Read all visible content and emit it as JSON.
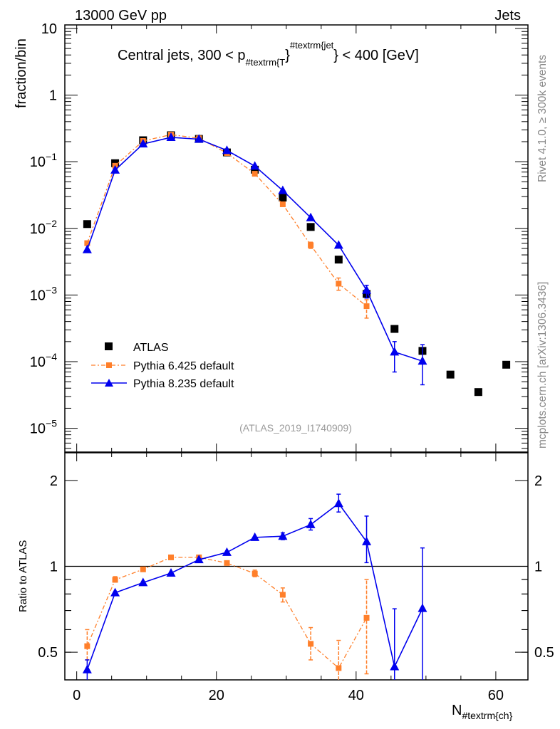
{
  "header": {
    "left": "13000 GeV pp",
    "right": "Jets"
  },
  "side": {
    "rivet": "Rivet 4.1.0, ≥ 300k events",
    "mcplots": "mcplots.cern.ch [arXiv:1306.3436]"
  },
  "chart_data": [
    {
      "type": "scatter",
      "title_parts": {
        "main": "Central jets, 300 < p",
        "sub": "#textrm{T",
        "mid": "}",
        "sup": "#textrm{jet",
        "tail": "} < 400 [GeV]"
      },
      "ylabel": "fraction/bin",
      "yscale": "log",
      "ylim": [
        4.4e-06,
        11.3
      ],
      "xlim": [
        -1.7,
        64.6
      ],
      "yticks": [
        {
          "v": 10,
          "base": "10",
          "exp": ""
        },
        {
          "v": 1,
          "base": "1",
          "exp": ""
        },
        {
          "v": 0.1,
          "base": "10",
          "exp": "−1"
        },
        {
          "v": 0.01,
          "base": "10",
          "exp": "−2"
        },
        {
          "v": 0.001,
          "base": "10",
          "exp": "−3"
        },
        {
          "v": 0.0001,
          "base": "10",
          "exp": "−4"
        },
        {
          "v": 1e-05,
          "base": "10",
          "exp": "−5"
        }
      ],
      "annotation": "(ATLAS_2019_I1740909)",
      "legend_position": "bottom-left",
      "series": [
        {
          "name": "ATLAS",
          "color": "#000000",
          "marker": "square",
          "x": [
            1.5,
            5.5,
            9.5,
            13.5,
            17.5,
            21.5,
            25.5,
            29.5,
            33.5,
            37.5,
            41.5,
            45.5,
            49.5,
            53.5,
            57.5,
            61.5
          ],
          "y": [
            0.0116,
            0.095,
            0.21,
            0.25,
            0.22,
            0.138,
            0.076,
            0.029,
            0.0105,
            0.0034,
            0.00104,
            0.00031,
            0.000145,
            6.4e-05,
            3.5e-05,
            9e-05
          ]
        },
        {
          "name": "Pythia 6.425 default",
          "color": "#ff7f2a",
          "marker": "small-square",
          "line": "dashdot",
          "x": [
            1.5,
            5.5,
            9.5,
            13.5,
            17.5,
            21.5,
            25.5,
            29.5,
            33.5,
            37.5,
            41.5
          ],
          "y": [
            0.006,
            0.087,
            0.205,
            0.255,
            0.225,
            0.135,
            0.066,
            0.023,
            0.0056,
            0.00148,
            0.00068
          ],
          "err": [
            null,
            null,
            null,
            null,
            null,
            null,
            null,
            null,
            [
              0.005,
              0.0062
            ],
            [
              0.00118,
              0.0018
            ],
            [
              0.00045,
              0.00085
            ]
          ]
        },
        {
          "name": "Pythia 8.235 default",
          "color": "#0000ee",
          "marker": "triangle",
          "line": "solid",
          "x": [
            1.5,
            5.5,
            9.5,
            13.5,
            17.5,
            21.5,
            25.5,
            29.5,
            33.5,
            37.5,
            41.5,
            45.5,
            49.5
          ],
          "y": [
            0.0048,
            0.075,
            0.185,
            0.232,
            0.218,
            0.148,
            0.086,
            0.037,
            0.0145,
            0.0056,
            0.00118,
            0.00014,
            0.000102
          ],
          "err": [
            null,
            null,
            null,
            null,
            null,
            null,
            null,
            null,
            null,
            null,
            [
              0.0009,
              0.0014
            ],
            [
              7e-05,
              0.0002
            ],
            [
              4.5e-05,
              0.00018
            ]
          ]
        }
      ]
    },
    {
      "type": "line",
      "ylabel": "Ratio to ATLAS",
      "xlabel_main": "N",
      "xlabel_sub": "#textrm{ch}",
      "yscale": "log",
      "ylim": [
        0.4,
        2.5
      ],
      "xlim": [
        -1.7,
        64.6
      ],
      "xticks": [
        0,
        20,
        40,
        60
      ],
      "yticks": [
        {
          "v": 0.5,
          "label": "0.5"
        },
        {
          "v": 1,
          "label": "1"
        },
        {
          "v": 2,
          "label": "2"
        }
      ],
      "reference_line": 1,
      "series": [
        {
          "name": "Pythia 6.425 default",
          "color": "#ff7f2a",
          "marker": "small-square",
          "line": "dashdot",
          "x": [
            1.5,
            5.5,
            9.5,
            13.5,
            17.5,
            21.5,
            25.5,
            29.5,
            33.5,
            37.5,
            41.5
          ],
          "y": [
            0.525,
            0.897,
            0.976,
            1.075,
            1.075,
            1.027,
            0.943,
            0.795,
            0.535,
            0.44,
            0.66
          ],
          "err": [
            [
              0.47,
              0.6
            ],
            [
              0.88,
              0.92
            ],
            null,
            null,
            null,
            null,
            [
              0.92,
              0.97
            ],
            [
              0.75,
              0.84
            ],
            [
              0.47,
              0.61
            ],
            [
              0.38,
              0.55
            ],
            [
              0.42,
              0.9
            ]
          ]
        },
        {
          "name": "Pythia 8.235 default",
          "color": "#0000ee",
          "marker": "triangle",
          "line": "solid",
          "x": [
            1.5,
            5.5,
            9.5,
            13.5,
            17.5,
            21.5,
            25.5,
            29.5,
            33.5,
            37.5,
            41.5,
            45.5,
            49.5
          ],
          "y": [
            0.434,
            0.808,
            0.877,
            0.947,
            1.055,
            1.119,
            1.263,
            1.275,
            1.4,
            1.66,
            1.22,
            0.445,
            0.712
          ],
          "err": [
            [
              0.38,
              0.47
            ],
            null,
            null,
            null,
            null,
            null,
            null,
            [
              1.24,
              1.31
            ],
            [
              1.34,
              1.47
            ],
            [
              1.55,
              1.79
            ],
            [
              1.03,
              1.5
            ],
            [
              0.38,
              0.71
            ],
            [
              0.38,
              1.16
            ]
          ]
        }
      ]
    }
  ]
}
